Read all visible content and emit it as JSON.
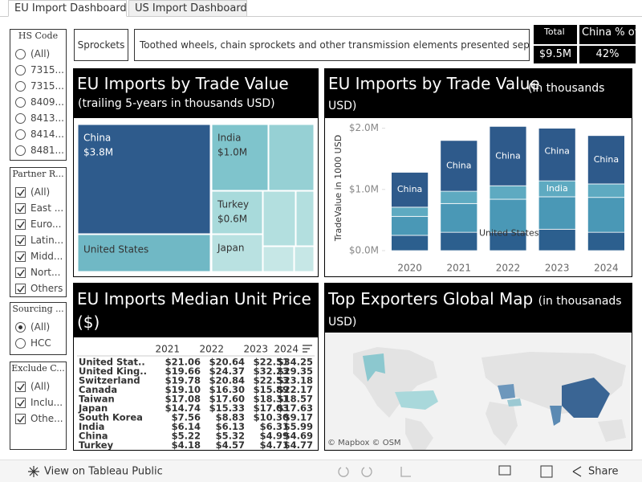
{
  "tabs": [
    "EU Import Dashboard",
    "US Import Dashboard"
  ],
  "filters": [
    {
      "title": "HS Code",
      "kind": "radio",
      "items": [
        {
          "label": "(All)",
          "checked": false
        },
        {
          "label": "7315...",
          "checked": false
        },
        {
          "label": "7315...",
          "checked": false
        },
        {
          "label": "8409...",
          "checked": false
        },
        {
          "label": "8413...",
          "checked": false
        },
        {
          "label": "8414...",
          "checked": false
        },
        {
          "label": "8481...",
          "checked": false
        }
      ]
    },
    {
      "title": "Partner R...",
      "kind": "checkbox",
      "items": [
        {
          "label": "(All)",
          "checked": true
        },
        {
          "label": "East ...",
          "checked": true
        },
        {
          "label": "Euro...",
          "checked": true
        },
        {
          "label": "Latin...",
          "checked": true
        },
        {
          "label": "Midd...",
          "checked": true
        },
        {
          "label": "Nort...",
          "checked": true
        },
        {
          "label": "Others",
          "checked": true
        }
      ]
    },
    {
      "title": "Sourcing ...",
      "kind": "radio",
      "items": [
        {
          "label": "(All)",
          "checked": true
        },
        {
          "label": "HCC",
          "checked": false
        }
      ]
    },
    {
      "title": "Exclude C...",
      "kind": "checkbox",
      "items": [
        {
          "label": "(All)",
          "checked": true
        },
        {
          "label": "Inclu...",
          "checked": true
        },
        {
          "label": "Othe...",
          "checked": true
        }
      ]
    }
  ],
  "product": {
    "name": "Sprockets",
    "description": "Toothed wheels, chain sprockets and other transmission elements presented separately"
  },
  "kpis": [
    {
      "label": "Total",
      "value": "$9.5M"
    },
    {
      "label": "China % of",
      "value": "42%"
    }
  ],
  "chart_data": [
    {
      "type": "treemap",
      "title": "EU Imports by Trade Value",
      "subtitle": "(trailing 5-years in thousands USD)",
      "items": [
        {
          "name": "China",
          "value": 3.8,
          "value_label": "$3.8M",
          "color": "#2e5b8c"
        },
        {
          "name": "United States",
          "value": 1.3,
          "color": "#70b8c5"
        },
        {
          "name": "India",
          "value": 1.0,
          "value_label": "$1.0M",
          "color": "#7fc4cc"
        },
        {
          "value": 0.8,
          "color": "#96d0d4"
        },
        {
          "name": "Turkey",
          "value": 0.6,
          "value_label": "$0.6M",
          "color": "#a8dadb"
        },
        {
          "value": 0.4,
          "color": "#b3dfdf"
        },
        {
          "value": 0.2,
          "color": "#b3dfdf"
        },
        {
          "name": "Japan",
          "value": 0.5,
          "color": "#b9e1e1"
        },
        {
          "value": 0.2,
          "color": "#c6e7e6"
        },
        {
          "value": 0.1,
          "color": "#c6e7e6"
        }
      ]
    },
    {
      "type": "stacked-bar",
      "title": "EU Imports by Trade Value",
      "subtitle": "(in thousands USD)",
      "y_label": "TradeValue in 1000 USD",
      "categories": [
        "2020",
        "2021",
        "2022",
        "2023",
        "2024"
      ],
      "series": [
        {
          "name": "United States",
          "color": "#2c5f8e",
          "values": [
            0.25,
            0.3,
            0.3,
            0.35,
            0.3
          ]
        },
        {
          "color": "#4a98b6",
          "values": [
            0.31,
            0.47,
            0.54,
            0.53,
            0.57
          ]
        },
        {
          "name": "India",
          "color": "#5eaac1",
          "values": [
            0.15,
            0.2,
            0.22,
            0.26,
            0.22
          ]
        },
        {
          "name": "China",
          "color": "#2e5a8b",
          "values": [
            0.57,
            0.83,
            0.97,
            0.86,
            0.79
          ]
        }
      ],
      "ylim": [
        0,
        2.1
      ],
      "yticks": [
        {
          "value": 0,
          "label": "$0.0M"
        },
        {
          "value": 1,
          "label": "$1.0M"
        },
        {
          "value": 2,
          "label": "$2.0M"
        }
      ]
    }
  ],
  "table": {
    "title": "EU Imports Median Unit Price ($)",
    "columns": [
      "2021",
      "2022",
      "2023",
      "2024"
    ],
    "rows": [
      [
        "United Stat..",
        "$21.06",
        "$20.64",
        "$22.51",
        "$34.25"
      ],
      [
        "United King..",
        "$19.66",
        "$24.37",
        "$32.23",
        "$29.35"
      ],
      [
        "Switzerland",
        "$19.78",
        "$20.84",
        "$22.53",
        "$23.18"
      ],
      [
        "Canada",
        "$19.10",
        "$16.30",
        "$15.89",
        "$22.17"
      ],
      [
        "Taiwan",
        "$17.08",
        "$17.60",
        "$18.31",
        "$18.57"
      ],
      [
        "Japan",
        "$14.74",
        "$15.33",
        "$17.03",
        "$17.63"
      ],
      [
        "South Korea",
        "$7.56",
        "$8.83",
        "$10.30",
        "$9.17"
      ],
      [
        "India",
        "$6.14",
        "$6.13",
        "$6.31",
        "$5.99"
      ],
      [
        "China",
        "$5.22",
        "$5.32",
        "$4.99",
        "$4.69"
      ],
      [
        "Turkey",
        "$4.18",
        "$4.57",
        "$4.71",
        "$4.77"
      ]
    ]
  },
  "map": {
    "title": "Top Exporters Global Map",
    "subtitle": "(in thousanads USD)",
    "attribution": "© Mapbox © OSM"
  },
  "footer": {
    "link": "View on Tableau Public",
    "share": "Share"
  }
}
